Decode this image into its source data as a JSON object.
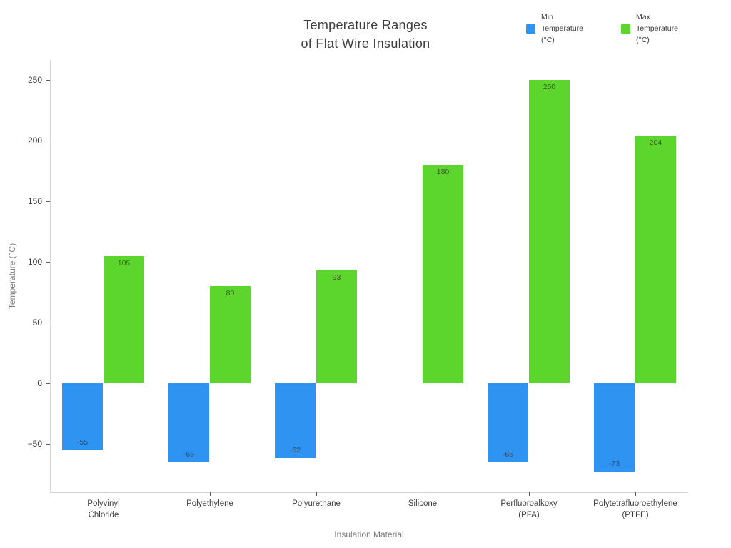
{
  "title": {
    "line1": "Temperature Ranges",
    "line2": "of Flat Wire Insulation"
  },
  "axes": {
    "x_title": "Insulation Material",
    "y_title": "Temperature (°C)"
  },
  "legend": {
    "items": [
      {
        "name": "min",
        "label_lines": [
          "Min",
          "Temperature",
          "(°C)"
        ],
        "color": "#2f94f1"
      },
      {
        "name": "max",
        "label_lines": [
          "Max",
          "Temperature",
          "(°C)"
        ],
        "color": "#5cd62d"
      }
    ]
  },
  "chart_data": {
    "type": "bar",
    "title": "Temperature Ranges of Flat Wire Insulation",
    "xlabel": "Insulation Material",
    "ylabel": "Temperature (°C)",
    "categories": [
      "Polyvinyl Chloride",
      "Polyethylene",
      "Polyurethane",
      "Silicone",
      "Perfluoroalkoxy (PFA)",
      "Polytetrafluoroethylene (PTFE)"
    ],
    "category_label_lines": [
      [
        "Polyvinyl",
        "Chloride"
      ],
      [
        "Polyethylene"
      ],
      [
        "Polyurethane"
      ],
      [
        "Silicone"
      ],
      [
        "Perfluoroalkoxy",
        "(PFA)"
      ],
      [
        "Polytetrafluoroethylene",
        "(PTFE)"
      ]
    ],
    "series": [
      {
        "name": "Min Temperature (°C)",
        "color": "#2f94f1",
        "label_color": "#2e506e",
        "values": [
          -55,
          -65,
          -62,
          null,
          -65,
          -73
        ]
      },
      {
        "name": "Max Temperature (°C)",
        "color": "#5cd62d",
        "label_color": "#3f5a26",
        "values": [
          105,
          80,
          93,
          180,
          250,
          204
        ]
      }
    ],
    "y_ticks": [
      250,
      200,
      150,
      100,
      50,
      0,
      -50
    ],
    "ylim": [
      -90,
      266
    ],
    "grid": false,
    "legend_position": "top-right",
    "bar_value_labels": "inside-end"
  }
}
